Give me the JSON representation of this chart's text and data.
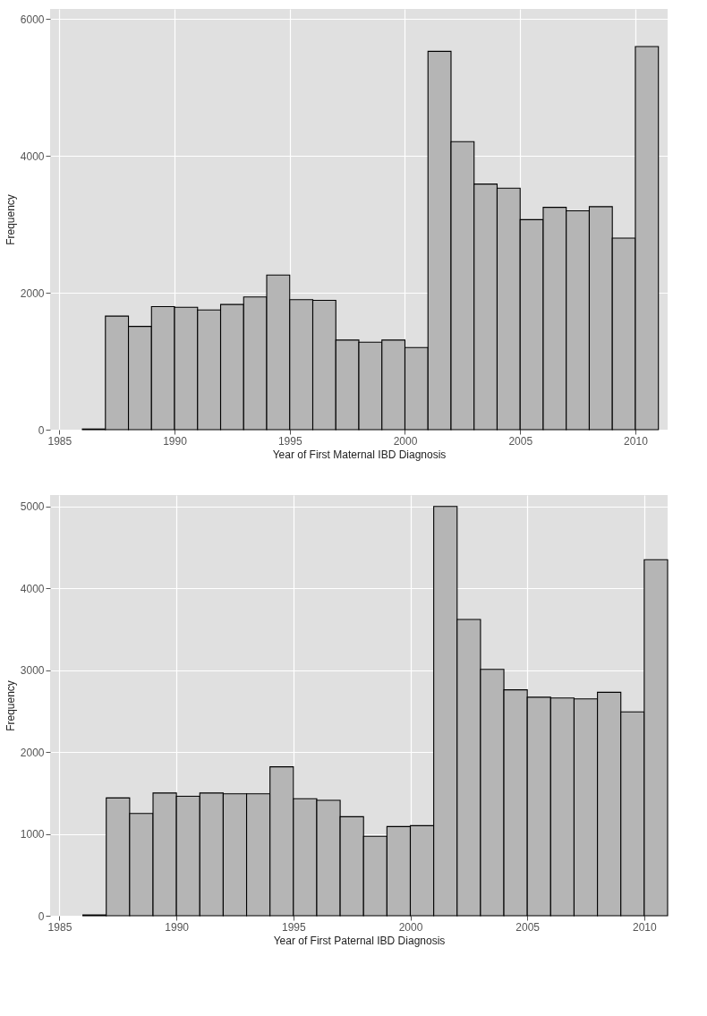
{
  "chart_data": [
    {
      "type": "histogram",
      "xlabel": "Year of First Maternal IBD Diagnosis",
      "ylabel": "Frequency",
      "color": "#b5b5b5",
      "bins": [
        1986,
        1987,
        1988,
        1989,
        1990,
        1991,
        1992,
        1993,
        1994,
        1995,
        1996,
        1997,
        1998,
        1999,
        2000,
        2001,
        2002,
        2003,
        2004,
        2005,
        2006,
        2007,
        2008,
        2009,
        2010,
        2011
      ],
      "values": [
        10,
        1660,
        1510,
        1800,
        1790,
        1750,
        1830,
        1940,
        2260,
        1900,
        1890,
        1310,
        1280,
        1310,
        1200,
        5530,
        4210,
        3590,
        3530,
        3070,
        3250,
        3200,
        3260,
        2800,
        5600
      ],
      "xlim": [
        1984.6,
        2011.4
      ],
      "ylim": [
        0,
        6150
      ],
      "xticks": [
        1985,
        1990,
        1995,
        2000,
        2005,
        2010
      ],
      "yticks": [
        0,
        2000,
        4000,
        6000
      ],
      "grid": true
    },
    {
      "type": "histogram",
      "xlabel": "Year of First Paternal IBD Diagnosis",
      "ylabel": "Frequency",
      "color": "#b5b5b5",
      "bins": [
        1986,
        1987,
        1988,
        1989,
        1990,
        1991,
        1992,
        1993,
        1994,
        1995,
        1996,
        1997,
        1998,
        1999,
        2000,
        2001,
        2002,
        2003,
        2004,
        2005,
        2006,
        2007,
        2008,
        2009,
        2010,
        2011
      ],
      "values": [
        10,
        1440,
        1250,
        1500,
        1460,
        1500,
        1490,
        1490,
        1820,
        1430,
        1410,
        1210,
        970,
        1090,
        1100,
        5000,
        3620,
        3010,
        2760,
        2670,
        2660,
        2650,
        2730,
        2490,
        4350
      ],
      "xlim": [
        1984.6,
        2011.0
      ],
      "ylim": [
        0,
        5140
      ],
      "xticks": [
        1985,
        1990,
        1995,
        2000,
        2005,
        2010
      ],
      "yticks": [
        0,
        1000,
        2000,
        3000,
        4000,
        5000
      ],
      "grid": true
    }
  ]
}
